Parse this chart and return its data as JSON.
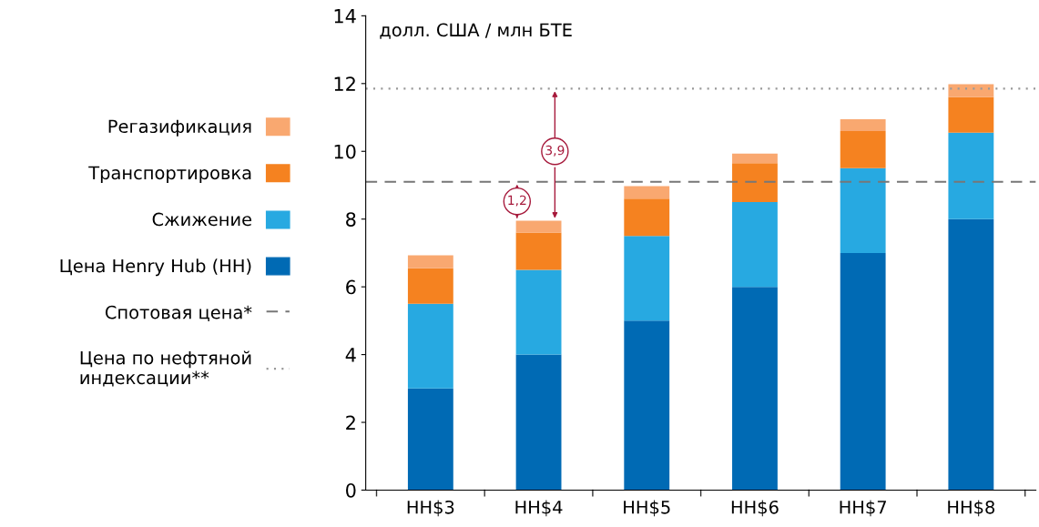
{
  "chart_data": {
    "type": "bar",
    "stacked": true,
    "ylabel": "долл. США / млн БТЕ",
    "categories": [
      "HH$3",
      "HH$4",
      "HH$5",
      "HH$6",
      "HH$7",
      "HH$8"
    ],
    "series": [
      {
        "name": "Цена Henry Hub (HH)",
        "color": "#006ab4",
        "values": [
          3,
          4,
          5,
          6,
          7,
          8
        ]
      },
      {
        "name": "Сжижение",
        "color": "#27a9e1",
        "values": [
          2.5,
          2.5,
          2.5,
          2.5,
          2.5,
          2.55
        ]
      },
      {
        "name": "Транспортировка",
        "color": "#f58220",
        "values": [
          1.05,
          1.1,
          1.1,
          1.15,
          1.1,
          1.05
        ]
      },
      {
        "name": "Регазификация",
        "color": "#f9a870",
        "values": [
          0.38,
          0.35,
          0.37,
          0.28,
          0.35,
          0.38
        ]
      }
    ],
    "ylim": [
      0,
      14
    ],
    "yticks": [
      0,
      2,
      4,
      6,
      8,
      10,
      12,
      14
    ],
    "ref_lines": [
      {
        "axis": "y",
        "value": 9.1,
        "label": "Спотовая цена*",
        "color": "#777777",
        "line_style": "dashed"
      },
      {
        "axis": "y",
        "value": 11.85,
        "label": "Цена по нефтяной\nиндексации**",
        "color": "#999999",
        "line_style": "dotted"
      }
    ],
    "annotations": [
      {
        "text": "1,2",
        "x": "HH$4",
        "y": 7.95
      },
      "3,9"
    ],
    "grid": false,
    "legend": "left"
  }
}
